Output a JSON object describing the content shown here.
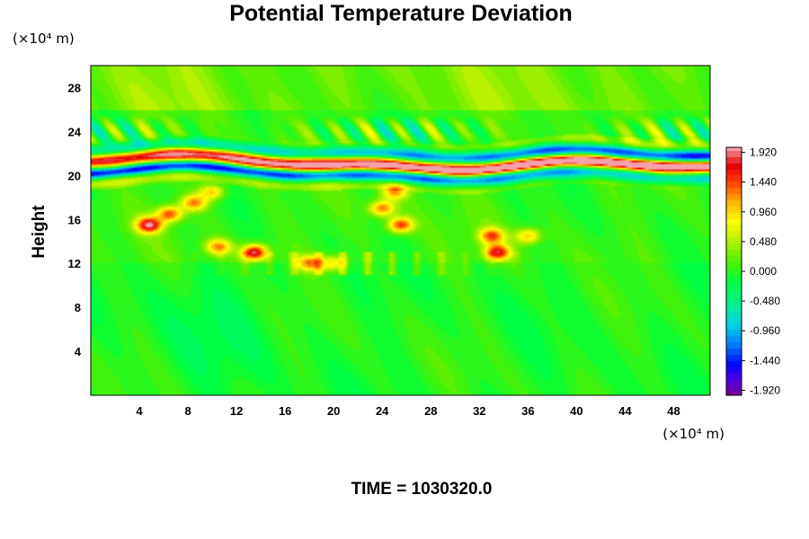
{
  "chart_data": {
    "type": "heatmap",
    "title": "Potential Temperature Deviation",
    "ylabel": "Height",
    "y_unit": "(×10⁴ m)",
    "x_unit": "(×10⁴ m)",
    "xlim": [
      0,
      51
    ],
    "ylim": [
      0,
      30
    ],
    "x_ticks": [
      4,
      8,
      12,
      16,
      20,
      24,
      28,
      32,
      36,
      40,
      44,
      48
    ],
    "y_ticks": [
      4,
      8,
      12,
      16,
      20,
      24,
      28
    ],
    "colorbar": {
      "min": -2.0,
      "max": 2.0,
      "labels": [
        1.92,
        1.44,
        0.96,
        0.48,
        0.0,
        -0.48,
        -0.96,
        -1.44,
        -1.92
      ],
      "label_text": [
        "1.920",
        "1.440",
        "0.960",
        "0.480",
        "0.000",
        "-0.480",
        "-0.960",
        "-1.440",
        "-1.920"
      ]
    },
    "features": {
      "background_level": 0.05,
      "layer_band": {
        "y_center": 21.0,
        "y_halfwidth": 1.4,
        "peak": 2.0,
        "trough": -2.0
      },
      "upper_waves": {
        "y_min": 22.5,
        "y_max": 25.5,
        "amplitude": 0.8
      },
      "plumes": [
        {
          "x": 4.8,
          "y": 15.5,
          "value": 1.8
        },
        {
          "x": 6.5,
          "y": 16.5,
          "value": 1.4
        },
        {
          "x": 8.5,
          "y": 17.5,
          "value": 1.2
        },
        {
          "x": 10.0,
          "y": 18.5,
          "value": 1.0
        },
        {
          "x": 13.5,
          "y": 13.0,
          "value": 1.9
        },
        {
          "x": 10.5,
          "y": 13.5,
          "value": 1.2
        },
        {
          "x": 24.0,
          "y": 17.0,
          "value": 1.3
        },
        {
          "x": 25.5,
          "y": 15.5,
          "value": 1.5
        },
        {
          "x": 25.0,
          "y": 18.5,
          "value": 1.1
        },
        {
          "x": 33.5,
          "y": 13.0,
          "value": 1.6
        },
        {
          "x": 33.0,
          "y": 14.5,
          "value": 1.3
        },
        {
          "x": 36.0,
          "y": 14.5,
          "value": 1.0
        },
        {
          "x": 18.0,
          "y": 12.0,
          "value": 1.2
        },
        {
          "x": 20.0,
          "y": 12.0,
          "value": 0.9
        }
      ]
    }
  },
  "footer": {
    "time_label": "TIME = 1030320.0"
  }
}
